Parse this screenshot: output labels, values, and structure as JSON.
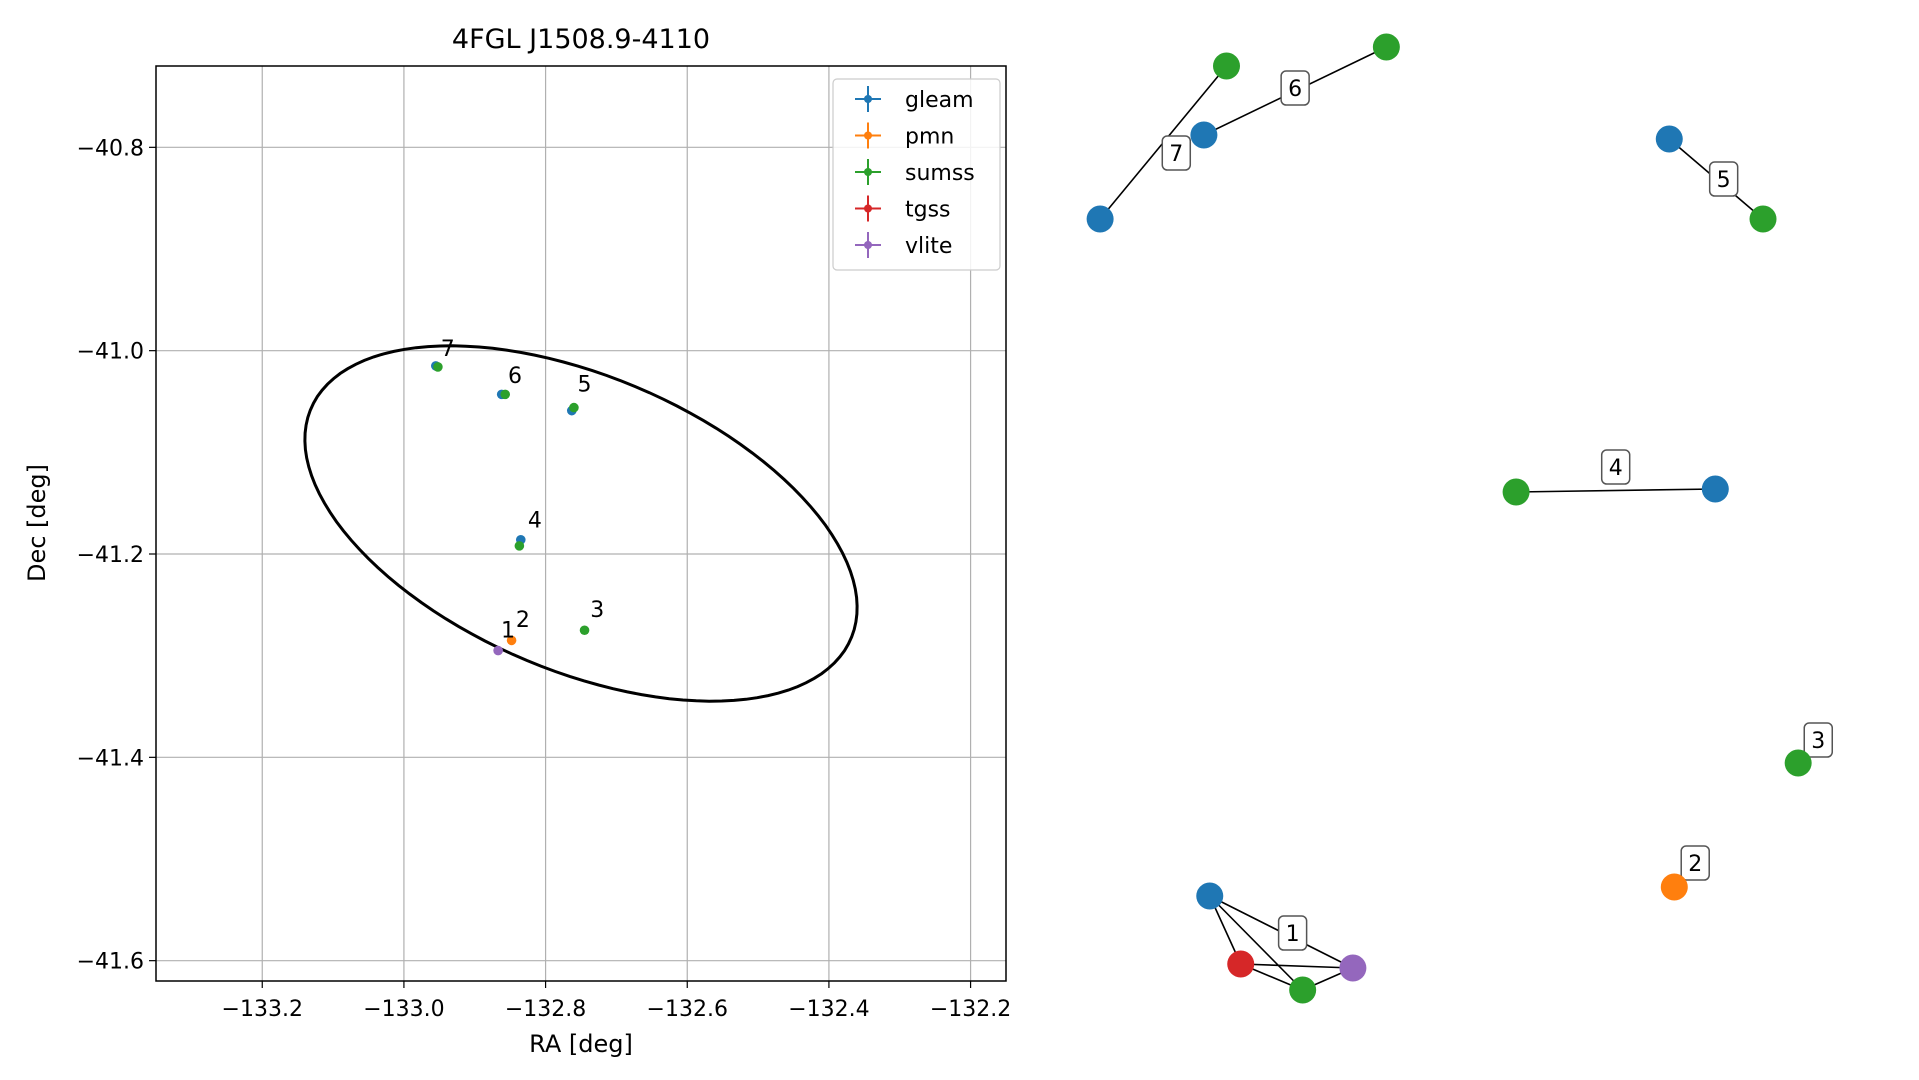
{
  "chart_data": [
    {
      "type": "scatter",
      "title": "4FGL J1508.9-4110",
      "xlabel": "RA [deg]",
      "ylabel": "Dec [deg]",
      "xlim": [
        -133.35,
        -132.15
      ],
      "ylim": [
        -41.62,
        -40.72
      ],
      "xticks": [
        -133.2,
        -133.0,
        -132.8,
        -132.6,
        -132.4,
        -132.2
      ],
      "xtick_labels": [
        "−133.2",
        "−133.0",
        "−132.8",
        "−132.6",
        "−132.4",
        "−132.2"
      ],
      "yticks": [
        -40.8,
        -41.0,
        -41.2,
        -41.4,
        -41.6
      ],
      "ytick_labels": [
        "−40.8",
        "−41.0",
        "−41.2",
        "−41.4",
        "−41.6"
      ],
      "grid": true,
      "legend_position": "upper right",
      "legend": [
        {
          "name": "gleam",
          "color": "#1f77b4"
        },
        {
          "name": "pmn",
          "color": "#ff7f0e"
        },
        {
          "name": "sumss",
          "color": "#2ca02c"
        },
        {
          "name": "tgss",
          "color": "#d62728"
        },
        {
          "name": "vlite",
          "color": "#9467bd"
        }
      ],
      "ellipse": {
        "center": [
          -132.75,
          -41.17
        ],
        "semi_major": 0.4,
        "semi_minor": 0.15,
        "angle_deg": -14,
        "color": "#000000"
      },
      "points": [
        {
          "x": -132.955,
          "y": -41.015,
          "color": "#1f77b4"
        },
        {
          "x": -132.952,
          "y": -41.016,
          "color": "#2ca02c"
        },
        {
          "x": -132.862,
          "y": -41.043,
          "color": "#1f77b4"
        },
        {
          "x": -132.857,
          "y": -41.043,
          "color": "#2ca02c"
        },
        {
          "x": -132.763,
          "y": -41.059,
          "color": "#1f77b4"
        },
        {
          "x": -132.76,
          "y": -41.056,
          "color": "#2ca02c"
        },
        {
          "x": -132.835,
          "y": -41.186,
          "color": "#1f77b4"
        },
        {
          "x": -132.837,
          "y": -41.192,
          "color": "#2ca02c"
        },
        {
          "x": -132.745,
          "y": -41.275,
          "color": "#2ca02c"
        },
        {
          "x": -132.848,
          "y": -41.285,
          "color": "#ff7f0e"
        },
        {
          "x": -132.867,
          "y": -41.295,
          "color": "#9467bd"
        }
      ],
      "labels": [
        {
          "text": "1",
          "x": -132.863,
          "y": -41.282
        },
        {
          "text": "2",
          "x": -132.842,
          "y": -41.272
        },
        {
          "text": "3",
          "x": -132.737,
          "y": -41.262
        },
        {
          "text": "4",
          "x": -132.825,
          "y": -41.174
        },
        {
          "text": "5",
          "x": -132.755,
          "y": -41.04
        },
        {
          "text": "6",
          "x": -132.853,
          "y": -41.032
        },
        {
          "text": "7",
          "x": -132.948,
          "y": -41.005
        }
      ]
    },
    {
      "type": "network",
      "nodes": [
        {
          "id": "g7",
          "color": "#1f77b4",
          "x": 0.03,
          "y": 0.829
        },
        {
          "id": "s7",
          "color": "#2ca02c",
          "x": 0.181,
          "y": 0.982
        },
        {
          "id": "g6",
          "color": "#1f77b4",
          "x": 0.154,
          "y": 0.913
        },
        {
          "id": "s6",
          "color": "#2ca02c",
          "x": 0.372,
          "y": 1.001
        },
        {
          "id": "g5",
          "color": "#1f77b4",
          "x": 0.71,
          "y": 0.909
        },
        {
          "id": "s5",
          "color": "#2ca02c",
          "x": 0.822,
          "y": 0.829
        },
        {
          "id": "s4",
          "color": "#2ca02c",
          "x": 0.527,
          "y": 0.556
        },
        {
          "id": "g4",
          "color": "#1f77b4",
          "x": 0.765,
          "y": 0.559
        },
        {
          "id": "s3",
          "color": "#2ca02c",
          "x": 0.864,
          "y": 0.285
        },
        {
          "id": "p2",
          "color": "#ff7f0e",
          "x": 0.716,
          "y": 0.161
        },
        {
          "id": "g1",
          "color": "#1f77b4",
          "x": 0.161,
          "y": 0.152
        },
        {
          "id": "t1",
          "color": "#d62728",
          "x": 0.198,
          "y": 0.084
        },
        {
          "id": "s1",
          "color": "#2ca02c",
          "x": 0.272,
          "y": 0.058
        },
        {
          "id": "v1",
          "color": "#9467bd",
          "x": 0.332,
          "y": 0.08
        }
      ],
      "edges": [
        [
          "g7",
          "s7"
        ],
        [
          "g6",
          "s6"
        ],
        [
          "g5",
          "s5"
        ],
        [
          "s4",
          "g4"
        ],
        [
          "g1",
          "t1"
        ],
        [
          "g1",
          "s1"
        ],
        [
          "g1",
          "v1"
        ],
        [
          "t1",
          "s1"
        ],
        [
          "t1",
          "v1"
        ],
        [
          "s1",
          "v1"
        ]
      ],
      "edge_labels": [
        {
          "text": "1",
          "x": 0.26,
          "y": 0.115
        },
        {
          "text": "2",
          "x": 0.741,
          "y": 0.185
        },
        {
          "text": "3",
          "x": 0.888,
          "y": 0.308
        },
        {
          "text": "4",
          "x": 0.646,
          "y": 0.581
        },
        {
          "text": "5",
          "x": 0.775,
          "y": 0.869
        },
        {
          "text": "6",
          "x": 0.263,
          "y": 0.96
        },
        {
          "text": "7",
          "x": 0.121,
          "y": 0.895
        }
      ]
    }
  ]
}
